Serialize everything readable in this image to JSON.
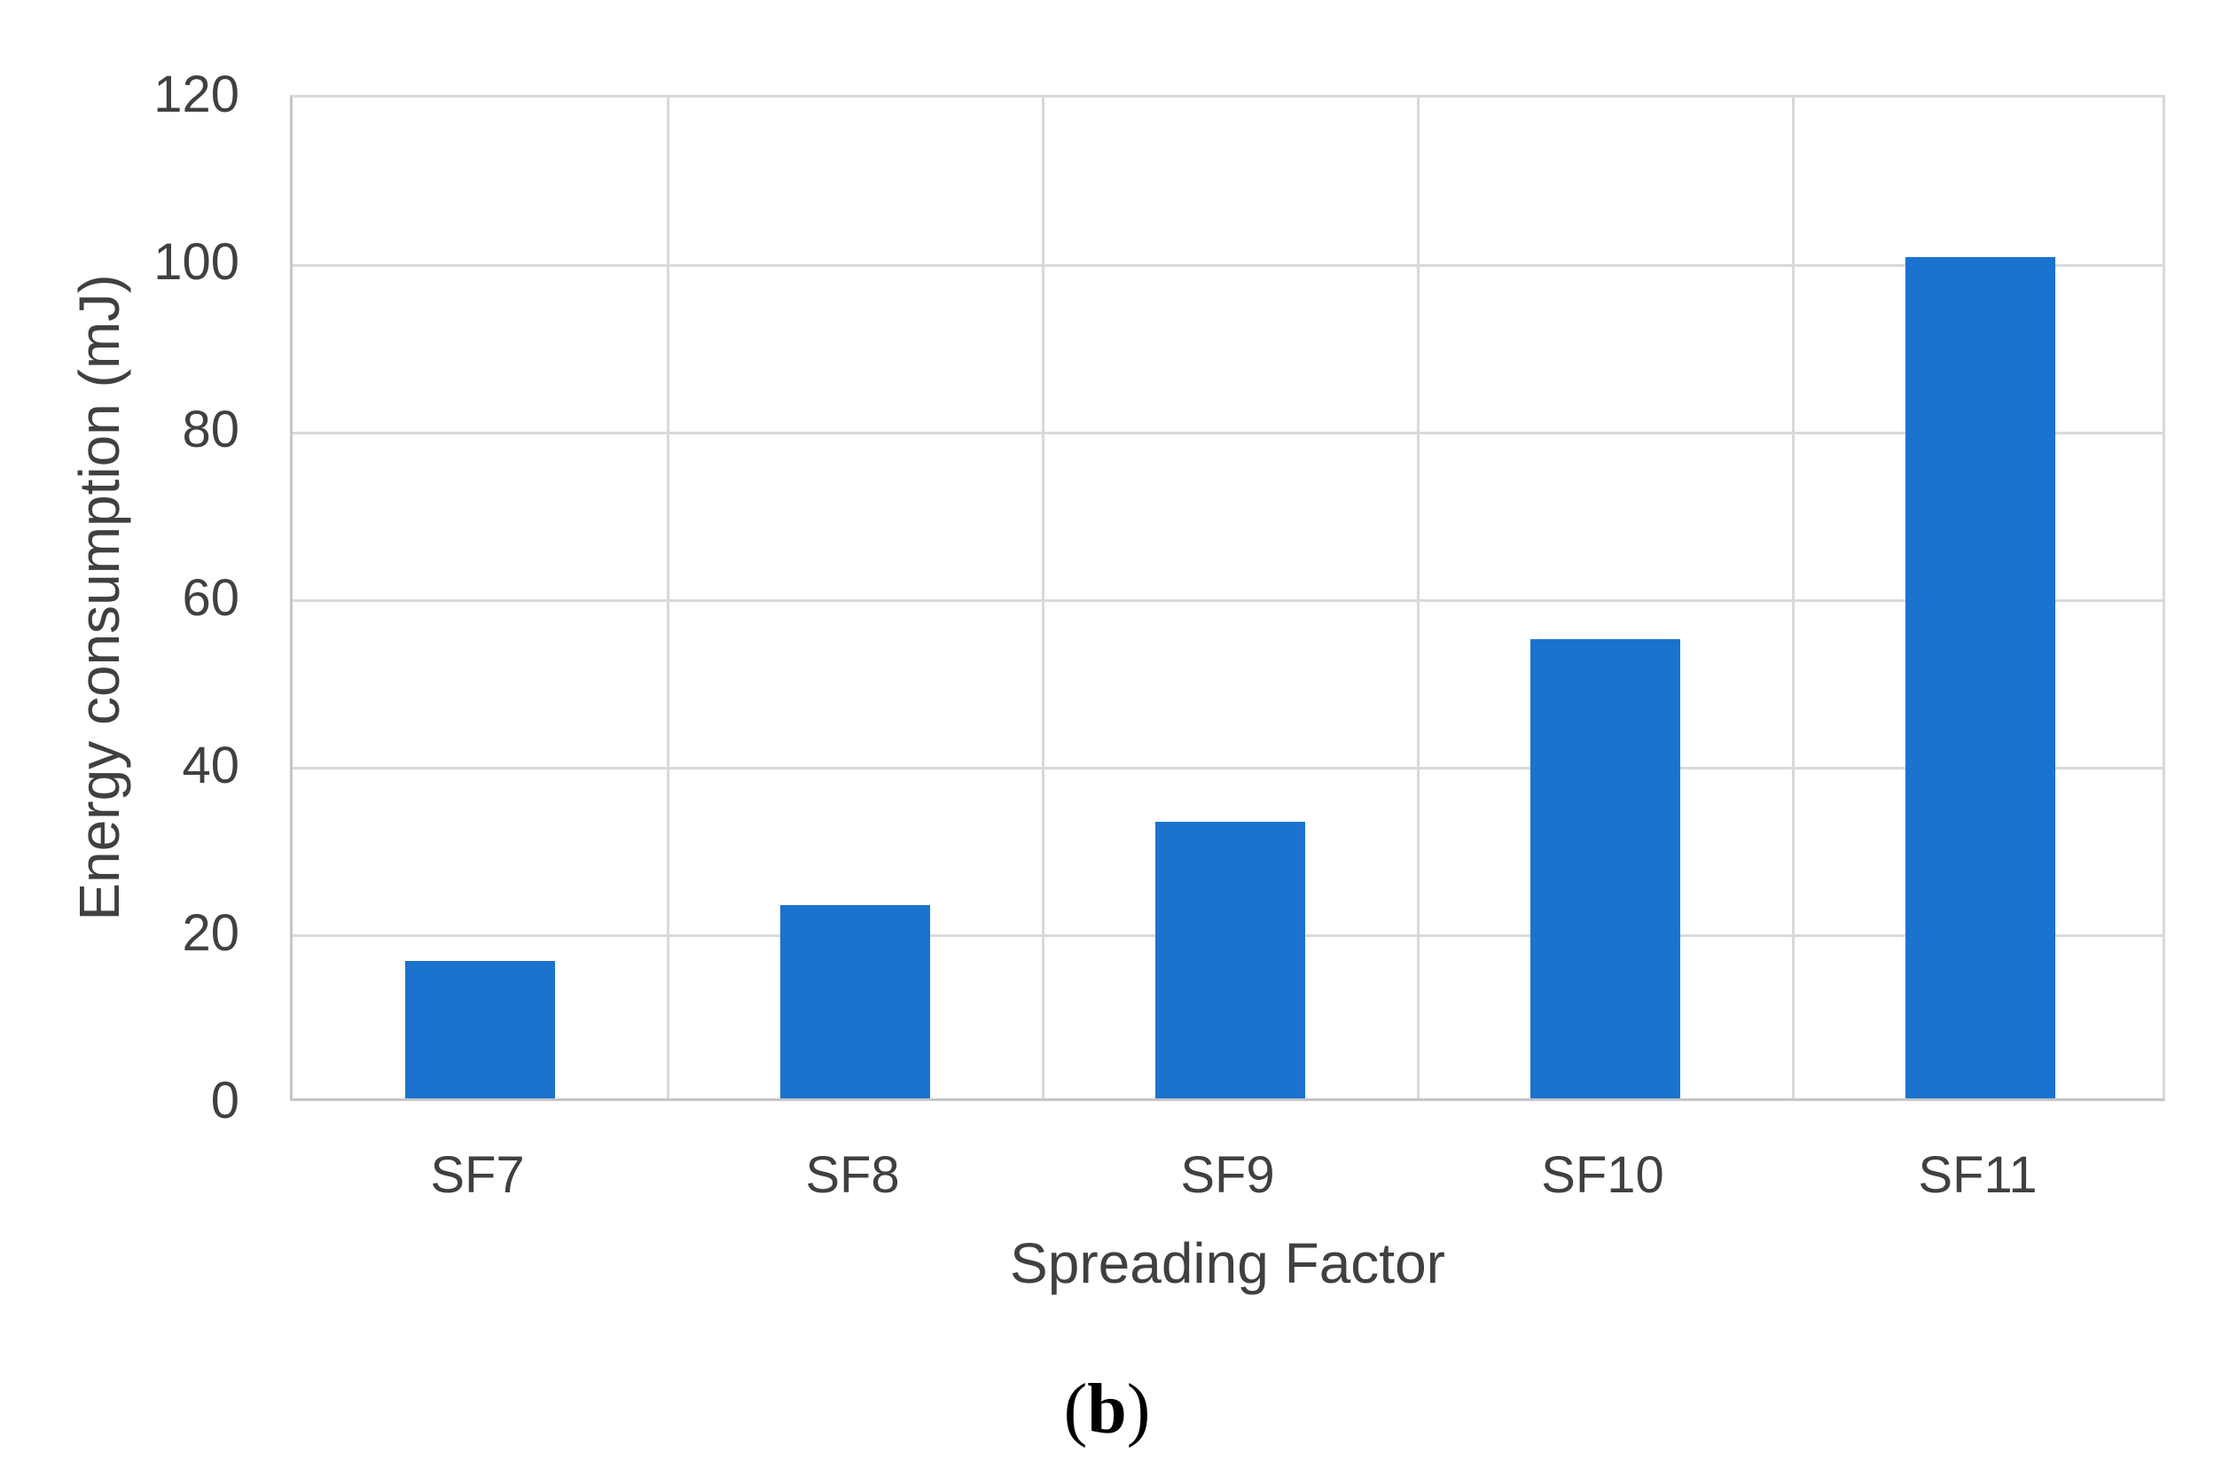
{
  "figure": {
    "background": "#FFFFFF"
  },
  "chart_data": {
    "type": "bar",
    "categories": [
      "SF7",
      "SF8",
      "SF9",
      "SF10",
      "SF11"
    ],
    "values": [
      16.4,
      23,
      33,
      54.8,
      100.3
    ],
    "title": "",
    "xlabel": "Spreading Factor",
    "ylabel": "Energy consumption (mJ)",
    "ylim": [
      0,
      120
    ],
    "yticks": [
      0,
      20,
      40,
      60,
      80,
      100,
      120
    ],
    "grid": true,
    "legend": "none",
    "bar_color": "#1B73CE",
    "gridline_color": "#D9D9D9",
    "axis_line_color": "#C6C6C6",
    "text_color": "#404040",
    "bar_width_fraction": 0.4
  },
  "caption": {
    "open": "(",
    "letter": "b",
    "close": ")"
  }
}
